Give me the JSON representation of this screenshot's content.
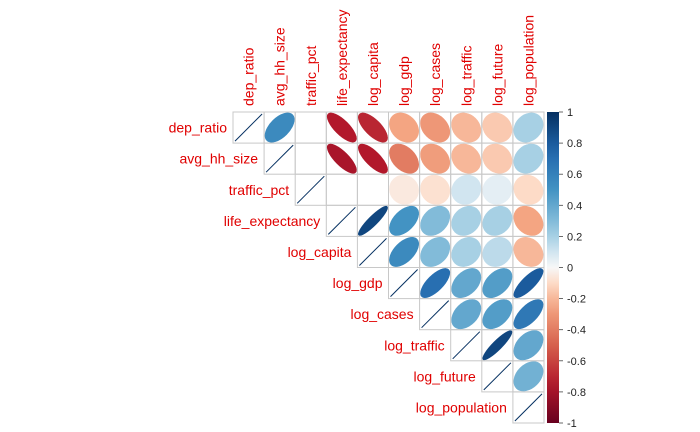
{
  "chart_data": {
    "type": "heatmap",
    "subtype": "correlation-matrix-ellipse-upper",
    "variables": [
      "dep_ratio",
      "avg_hh_size",
      "traffic_pct",
      "life_expectancy",
      "log_capita",
      "log_gdp",
      "log_cases",
      "log_traffic",
      "log_future",
      "log_population"
    ],
    "matrix": [
      [
        1.0,
        0.55,
        0.0,
        -0.75,
        -0.7,
        -0.25,
        -0.3,
        -0.2,
        -0.15,
        0.2
      ],
      [
        0.55,
        1.0,
        0.0,
        -0.78,
        -0.75,
        -0.4,
        -0.28,
        -0.2,
        -0.15,
        0.2
      ],
      [
        0.0,
        0.0,
        1.0,
        0.0,
        0.0,
        -0.05,
        -0.08,
        0.1,
        0.05,
        -0.1
      ],
      [
        -0.75,
        -0.78,
        0.0,
        1.0,
        0.9,
        0.5,
        0.3,
        0.2,
        0.2,
        -0.25
      ],
      [
        -0.7,
        -0.75,
        0.0,
        0.9,
        1.0,
        0.55,
        0.3,
        0.2,
        0.15,
        -0.2
      ],
      [
        -0.25,
        -0.4,
        -0.05,
        0.5,
        0.55,
        1.0,
        0.7,
        0.4,
        0.45,
        0.8
      ],
      [
        -0.3,
        -0.28,
        -0.08,
        0.3,
        0.3,
        0.7,
        1.0,
        0.4,
        0.45,
        0.65
      ],
      [
        -0.2,
        -0.2,
        0.1,
        0.2,
        0.2,
        0.4,
        0.4,
        1.0,
        0.9,
        0.4
      ],
      [
        -0.15,
        -0.15,
        0.05,
        0.2,
        0.15,
        0.45,
        0.45,
        0.9,
        1.0,
        0.35
      ],
      [
        0.2,
        0.2,
        -0.1,
        -0.25,
        -0.2,
        0.8,
        0.65,
        0.4,
        0.35,
        1.0
      ]
    ],
    "legend": {
      "min": -1,
      "max": 1,
      "ticks": [
        "1",
        "0.8",
        "0.6",
        "0.4",
        "0.2",
        "0",
        "-0.2",
        "-0.4",
        "-0.6",
        "-0.8",
        "-1"
      ],
      "colors": {
        "negative": "#67001f",
        "mid": "#f7f7f7",
        "positive": "#053061"
      },
      "placement": "right"
    },
    "label_color": "#e00000"
  }
}
